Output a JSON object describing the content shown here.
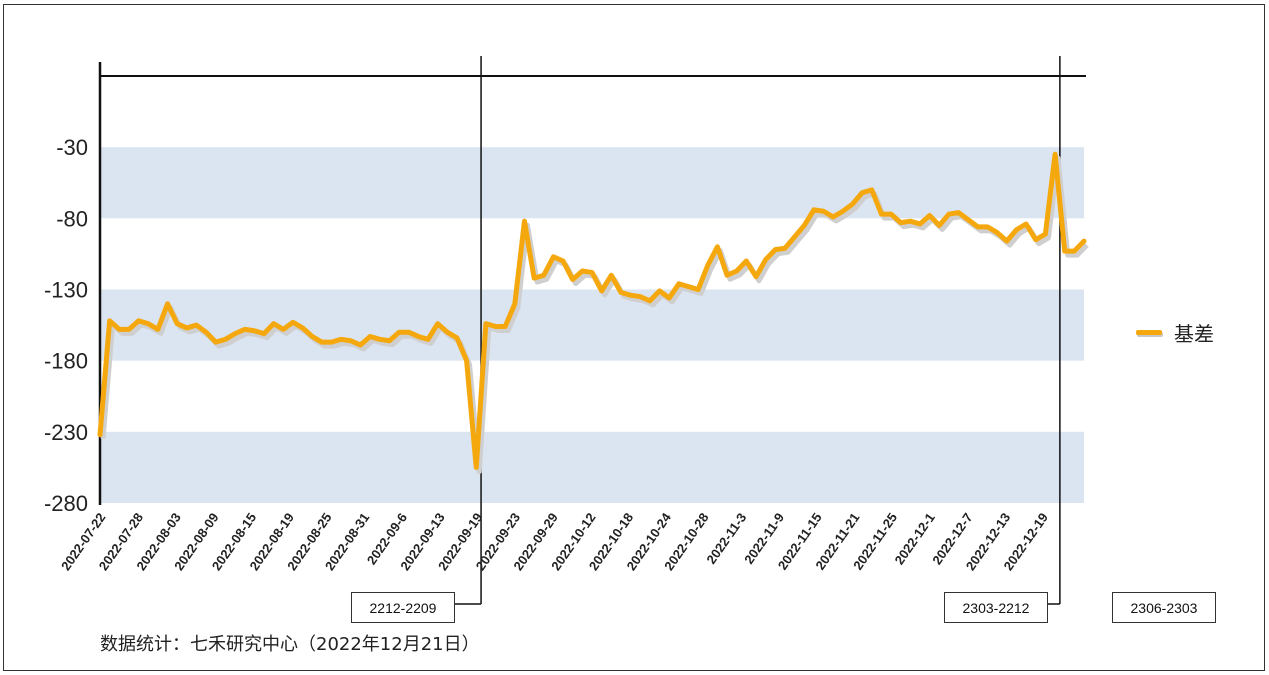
{
  "chart_data": {
    "type": "line",
    "series": [
      {
        "name": "基差",
        "color": "#f5a80d",
        "values": [
          -232,
          -152,
          -158,
          -158,
          -152,
          -154,
          -158,
          -140,
          -154,
          -157,
          -155,
          -160,
          -167,
          -165,
          -161,
          -158,
          -159,
          -161,
          -154,
          -158,
          -153,
          -157,
          -163,
          -167,
          -167,
          -165,
          -166,
          -169,
          -163,
          -165,
          -166,
          -160,
          -160,
          -163,
          -165,
          -154,
          -160,
          -164,
          -180,
          -255,
          -154,
          -156,
          -156,
          -140,
          -82,
          -122,
          -120,
          -107,
          -110,
          -123,
          -117,
          -118,
          -131,
          -120,
          -132,
          -134,
          -135,
          -138,
          -131,
          -136,
          -126,
          -128,
          -130,
          -113,
          -100,
          -120,
          -117,
          -110,
          -121,
          -109,
          -102,
          -101,
          -93,
          -85,
          -74,
          -75,
          -79,
          -75,
          -70,
          -62,
          -60,
          -77,
          -77,
          -83,
          -82,
          -84,
          -78,
          -85,
          -77,
          -76,
          -81,
          -86,
          -86,
          -90,
          -96,
          -88,
          -84,
          -95,
          -91,
          -35,
          -103,
          -103,
          -96
        ]
      }
    ],
    "x_ticks": [
      "2022-07-22",
      "2022-07-28",
      "2022-08-03",
      "2022-08-09",
      "2022-08-15",
      "2022-08-19",
      "2022-08-25",
      "2022-08-31",
      "2022-09-6",
      "2022-09-13",
      "2022-09-19",
      "2022-09-23",
      "2022-09-29",
      "2022-10-12",
      "2022-10-18",
      "2022-10-24",
      "2022-10-28",
      "2022-11-3",
      "2022-11-9",
      "2022-11-15",
      "2022-11-21",
      "2022-11-25",
      "2022-12-1",
      "2022-12-7",
      "2022-12-13",
      "2022-12-19"
    ],
    "y_ticks": [
      "-30",
      "-80",
      "-130",
      "-180",
      "-230",
      "-280"
    ],
    "ylim": [
      -280,
      20
    ],
    "grid": "alternating-bands",
    "band_color": "#dbe5f1",
    "legend_position": "right",
    "contract_segments": [
      {
        "label": "2212-2209",
        "start_index": 0,
        "end_index": 39
      },
      {
        "label": "2303-2212",
        "start_index": 40,
        "end_index": 99
      },
      {
        "label": "2306-2303",
        "start_index": 100,
        "end_index": 102
      }
    ]
  },
  "source_note": "数据统计：七禾研究中心（2022年12月21日）"
}
